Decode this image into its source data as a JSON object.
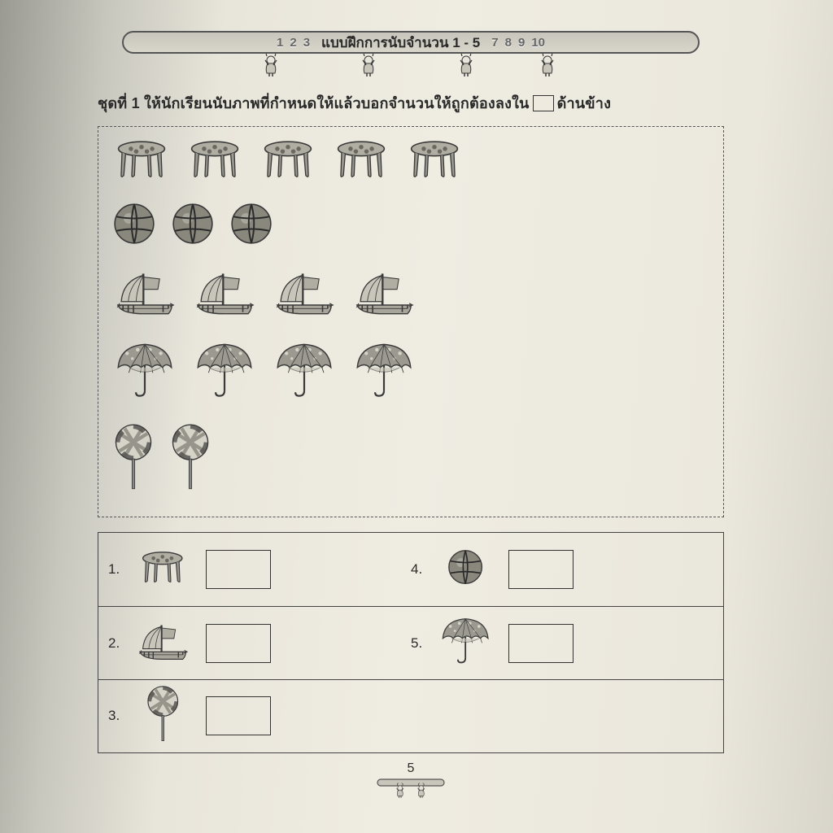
{
  "banner": {
    "numbers_left": [
      "1",
      "2",
      "3"
    ],
    "title": "แบบฝึกการนับจำนวน 1 - 5",
    "numbers_right": [
      "7",
      "8",
      "9",
      "10"
    ]
  },
  "instruction": {
    "prefix": "ชุดที่ 1 ให้นักเรียนนับภาพที่กำหนดให้แล้วบอกจำนวนให้ถูกต้องลงใน",
    "suffix": "ด้านข้าง"
  },
  "picture_rows": [
    {
      "icon": "table",
      "count": 5
    },
    {
      "icon": "ball",
      "count": 3
    },
    {
      "icon": "ship",
      "count": 4
    },
    {
      "icon": "umbrella",
      "count": 4
    },
    {
      "icon": "lollipop",
      "count": 2
    }
  ],
  "answers": [
    {
      "n": "1.",
      "icon": "table"
    },
    {
      "n": "2.",
      "icon": "ship"
    },
    {
      "n": "3.",
      "icon": "lollipop"
    },
    {
      "n": "4.",
      "icon": "ball"
    },
    {
      "n": "5.",
      "icon": "umbrella"
    }
  ],
  "page_number": "5",
  "colors": {
    "stroke": "#3a3a3a",
    "fill_mid": "#9c9a90",
    "fill_light": "#d6d3c8",
    "fill_dark": "#6a6860"
  }
}
